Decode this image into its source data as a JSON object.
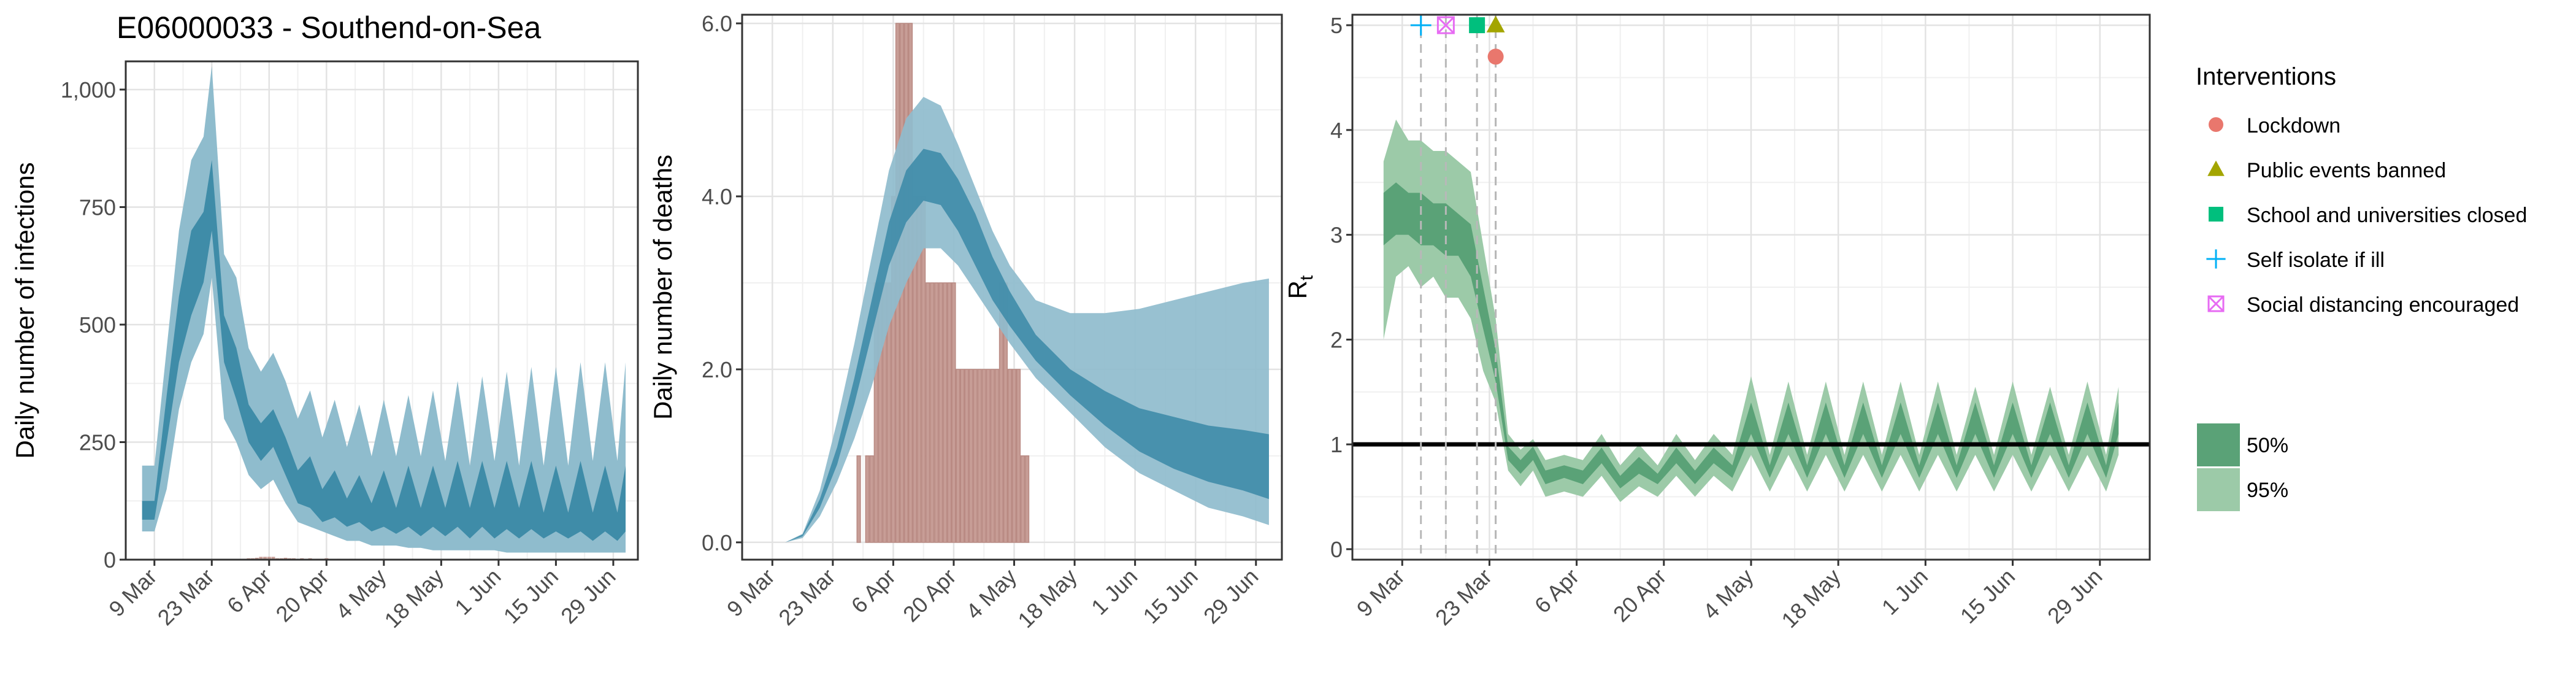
{
  "figure": {
    "title": "E06000033 - Southend-on-Sea"
  },
  "colors": {
    "infections_95": "#8fbccd",
    "infections_50": "#3f8ca8",
    "deaths_bar": "#c79d96",
    "rt_95": "#9ccaa8",
    "rt_50": "#5aa277",
    "rt_line": "#000000",
    "lockdown": "#e9776d",
    "public_events": "#a3a500",
    "school": "#00bf7d",
    "self_isolate": "#00b0f6",
    "social_distancing": "#e76bf3"
  },
  "x_ticks": [
    "9 Mar",
    "23 Mar",
    "6 Apr",
    "20 Apr",
    "4 May",
    "18 May",
    "1 Jun",
    "15 Jun",
    "29 Jun"
  ],
  "legend": {
    "interventions_title": "Interventions",
    "interventions": [
      {
        "label": "Lockdown",
        "icon": "circle-icon",
        "color": "#e9776d"
      },
      {
        "label": "Public events banned",
        "icon": "triangle-icon",
        "color": "#a3a500"
      },
      {
        "label": "School and universities closed",
        "icon": "square-icon",
        "color": "#00bf7d"
      },
      {
        "label": "Self isolate if ill",
        "icon": "plus-icon",
        "color": "#00b0f6"
      },
      {
        "label": "Social distancing encouraged",
        "icon": "boxed-x-icon",
        "color": "#e76bf3"
      }
    ],
    "bands": [
      {
        "label": "50%",
        "color": "#5aa277"
      },
      {
        "label": "95%",
        "color": "#9ccaa8"
      }
    ]
  },
  "chart_data": [
    {
      "type": "area",
      "panel": "infections",
      "ylabel": "Daily number of infections",
      "xlim": [
        "2020-03-02",
        "2020-07-05"
      ],
      "ylim": [
        0,
        1060
      ],
      "yticks": [
        "0",
        "250",
        "500",
        "750",
        "1,000"
      ],
      "ytick_values": [
        0,
        250,
        500,
        750,
        1000
      ],
      "xtick_dates": [
        "2020-03-09",
        "2020-03-23",
        "2020-04-06",
        "2020-04-20",
        "2020-05-04",
        "2020-05-18",
        "2020-06-01",
        "2020-06-15",
        "2020-06-29"
      ],
      "x": [
        "2020-03-06",
        "2020-03-09",
        "2020-03-12",
        "2020-03-15",
        "2020-03-18",
        "2020-03-21",
        "2020-03-23",
        "2020-03-26",
        "2020-03-29",
        "2020-04-01",
        "2020-04-04",
        "2020-04-07",
        "2020-04-10",
        "2020-04-13",
        "2020-04-16",
        "2020-04-19",
        "2020-04-22",
        "2020-04-25",
        "2020-04-28",
        "2020-05-01",
        "2020-05-04",
        "2020-05-07",
        "2020-05-10",
        "2020-05-13",
        "2020-05-16",
        "2020-05-19",
        "2020-05-22",
        "2020-05-25",
        "2020-05-28",
        "2020-05-31",
        "2020-06-03",
        "2020-06-06",
        "2020-06-09",
        "2020-06-12",
        "2020-06-15",
        "2020-06-18",
        "2020-06-21",
        "2020-06-24",
        "2020-06-27",
        "2020-06-30",
        "2020-07-02"
      ],
      "series": [
        {
          "name": "95%",
          "lower": [
            60,
            60,
            150,
            320,
            420,
            480,
            600,
            300,
            250,
            180,
            150,
            170,
            120,
            80,
            70,
            60,
            50,
            40,
            40,
            30,
            30,
            30,
            25,
            25,
            20,
            20,
            20,
            20,
            20,
            20,
            15,
            15,
            15,
            15,
            15,
            15,
            15,
            15,
            15,
            15,
            15
          ],
          "upper": [
            200,
            200,
            450,
            700,
            850,
            900,
            1050,
            650,
            600,
            450,
            400,
            440,
            380,
            300,
            360,
            260,
            340,
            240,
            330,
            220,
            340,
            220,
            350,
            220,
            360,
            210,
            380,
            200,
            390,
            210,
            400,
            200,
            410,
            200,
            410,
            200,
            420,
            210,
            420,
            210,
            420
          ]
        },
        {
          "name": "50%",
          "lower": [
            85,
            85,
            250,
            420,
            520,
            590,
            700,
            420,
            340,
            250,
            210,
            240,
            180,
            120,
            110,
            80,
            90,
            70,
            80,
            60,
            70,
            55,
            70,
            50,
            70,
            50,
            70,
            45,
            70,
            45,
            65,
            45,
            65,
            45,
            60,
            45,
            60,
            40,
            60,
            40,
            60
          ],
          "upper": [
            125,
            125,
            350,
            560,
            700,
            740,
            850,
            520,
            450,
            330,
            290,
            320,
            260,
            190,
            220,
            150,
            190,
            130,
            180,
            120,
            190,
            110,
            200,
            110,
            200,
            110,
            210,
            110,
            210,
            110,
            210,
            110,
            210,
            100,
            200,
            100,
            210,
            100,
            200,
            100,
            200
          ]
        }
      ],
      "observed_deaths": {
        "x": [
          "2020-03-29",
          "2020-03-30",
          "2020-03-31",
          "2020-04-01",
          "2020-04-02",
          "2020-04-03",
          "2020-04-04",
          "2020-04-05",
          "2020-04-06",
          "2020-04-07",
          "2020-04-08",
          "2020-04-09",
          "2020-04-10",
          "2020-04-11",
          "2020-04-12",
          "2020-04-14",
          "2020-04-16",
          "2020-04-18",
          "2020-04-20",
          "2020-04-23",
          "2020-04-26",
          "2020-04-29"
        ],
        "values": [
          1,
          1,
          2,
          3,
          3,
          4,
          6,
          6,
          6,
          6,
          3,
          3,
          4,
          3,
          3,
          3,
          3,
          2,
          3,
          2,
          2,
          1
        ]
      }
    },
    {
      "type": "bar",
      "panel": "deaths",
      "ylabel": "Daily number of deaths",
      "xlim": [
        "2020-03-02",
        "2020-07-05"
      ],
      "ylim": [
        -0.2,
        6.1
      ],
      "yticks": [
        "0.0",
        "2.0",
        "4.0",
        "6.0"
      ],
      "ytick_values": [
        0,
        2,
        4,
        6
      ],
      "xtick_dates": [
        "2020-03-09",
        "2020-03-23",
        "2020-04-06",
        "2020-04-20",
        "2020-05-04",
        "2020-05-18",
        "2020-06-01",
        "2020-06-15",
        "2020-06-29"
      ],
      "bars": {
        "x": [
          "2020-03-29",
          "2020-03-31",
          "2020-04-01",
          "2020-04-02",
          "2020-04-03",
          "2020-04-04",
          "2020-04-05",
          "2020-04-06",
          "2020-04-07",
          "2020-04-08",
          "2020-04-09",
          "2020-04-10",
          "2020-04-11",
          "2020-04-12",
          "2020-04-13",
          "2020-04-14",
          "2020-04-15",
          "2020-04-16",
          "2020-04-17",
          "2020-04-18",
          "2020-04-19",
          "2020-04-20",
          "2020-04-21",
          "2020-04-22",
          "2020-04-23",
          "2020-04-24",
          "2020-04-25",
          "2020-04-26",
          "2020-04-27",
          "2020-04-28",
          "2020-04-29",
          "2020-04-30",
          "2020-05-01",
          "2020-05-02",
          "2020-05-03",
          "2020-05-04",
          "2020-05-05",
          "2020-05-06",
          "2020-05-07"
        ],
        "values": [
          1,
          1,
          1,
          3,
          3,
          3,
          3,
          4,
          6,
          6,
          6,
          6,
          4,
          4,
          4,
          3,
          3,
          3,
          3,
          3,
          3,
          3,
          2,
          2,
          2,
          2,
          2,
          2,
          2,
          2,
          2,
          2,
          3,
          3,
          2,
          2,
          2,
          1,
          1
        ]
      },
      "x": [
        "2020-03-12",
        "2020-03-16",
        "2020-03-20",
        "2020-03-24",
        "2020-03-28",
        "2020-04-01",
        "2020-04-05",
        "2020-04-09",
        "2020-04-13",
        "2020-04-17",
        "2020-04-21",
        "2020-04-25",
        "2020-04-29",
        "2020-05-03",
        "2020-05-09",
        "2020-05-17",
        "2020-05-25",
        "2020-06-02",
        "2020-06-10",
        "2020-06-18",
        "2020-06-26",
        "2020-07-02"
      ],
      "series": [
        {
          "name": "95%",
          "lower": [
            0,
            0.05,
            0.3,
            0.7,
            1.2,
            1.8,
            2.5,
            3.0,
            3.4,
            3.4,
            3.2,
            2.9,
            2.6,
            2.3,
            1.9,
            1.5,
            1.1,
            0.8,
            0.6,
            0.4,
            0.3,
            0.2
          ],
          "upper": [
            0,
            0.1,
            0.6,
            1.4,
            2.3,
            3.3,
            4.3,
            4.9,
            5.15,
            5.05,
            4.6,
            4.1,
            3.6,
            3.2,
            2.8,
            2.65,
            2.65,
            2.7,
            2.8,
            2.9,
            3.0,
            3.05
          ]
        },
        {
          "name": "50%",
          "lower": [
            0,
            0.07,
            0.4,
            0.9,
            1.6,
            2.4,
            3.2,
            3.7,
            3.95,
            3.9,
            3.6,
            3.2,
            2.8,
            2.5,
            2.1,
            1.7,
            1.35,
            1.05,
            0.85,
            0.7,
            0.6,
            0.5
          ],
          "upper": [
            0,
            0.09,
            0.5,
            1.1,
            1.9,
            2.8,
            3.7,
            4.3,
            4.55,
            4.5,
            4.2,
            3.8,
            3.3,
            2.9,
            2.4,
            2.0,
            1.75,
            1.55,
            1.45,
            1.35,
            1.3,
            1.25
          ]
        }
      ]
    },
    {
      "type": "line",
      "panel": "rt",
      "ylabel": "R",
      "ylabel_sub": "t",
      "xlim": [
        "2020-03-01",
        "2020-07-07"
      ],
      "ylim": [
        -0.1,
        5.1
      ],
      "yticks": [
        "0",
        "1",
        "2",
        "3",
        "4",
        "5"
      ],
      "ytick_values": [
        0,
        1,
        2,
        3,
        4,
        5
      ],
      "xtick_dates": [
        "2020-03-09",
        "2020-03-23",
        "2020-04-06",
        "2020-04-20",
        "2020-05-04",
        "2020-05-18",
        "2020-06-01",
        "2020-06-15",
        "2020-06-29"
      ],
      "reference_line": 1,
      "intervention_dates": [
        {
          "label": "Self isolate if ill",
          "date": "2020-03-12",
          "y": 5.0
        },
        {
          "label": "Social distancing encouraged",
          "date": "2020-03-16",
          "y": 5.0
        },
        {
          "label": "School and universities closed",
          "date": "2020-03-21",
          "y": 5.0
        },
        {
          "label": "Public events banned",
          "date": "2020-03-24",
          "y": 5.0
        },
        {
          "label": "Lockdown",
          "date": "2020-03-24",
          "y": 4.7
        }
      ],
      "x": [
        "2020-03-06",
        "2020-03-08",
        "2020-03-10",
        "2020-03-12",
        "2020-03-14",
        "2020-03-16",
        "2020-03-18",
        "2020-03-20",
        "2020-03-22",
        "2020-03-24",
        "2020-03-26",
        "2020-03-28",
        "2020-03-30",
        "2020-04-01",
        "2020-04-04",
        "2020-04-07",
        "2020-04-10",
        "2020-04-13",
        "2020-04-16",
        "2020-04-19",
        "2020-04-22",
        "2020-04-25",
        "2020-04-28",
        "2020-05-01",
        "2020-05-04",
        "2020-05-07",
        "2020-05-10",
        "2020-05-13",
        "2020-05-16",
        "2020-05-19",
        "2020-05-22",
        "2020-05-25",
        "2020-05-28",
        "2020-05-31",
        "2020-06-03",
        "2020-06-06",
        "2020-06-09",
        "2020-06-12",
        "2020-06-15",
        "2020-06-18",
        "2020-06-21",
        "2020-06-24",
        "2020-06-27",
        "2020-06-30",
        "2020-07-02"
      ],
      "series": [
        {
          "name": "95%",
          "lower": [
            2.0,
            2.6,
            2.7,
            2.5,
            2.6,
            2.4,
            2.4,
            2.2,
            1.7,
            1.4,
            0.75,
            0.6,
            0.75,
            0.5,
            0.55,
            0.5,
            0.7,
            0.45,
            0.6,
            0.5,
            0.7,
            0.5,
            0.7,
            0.55,
            0.9,
            0.55,
            0.9,
            0.55,
            0.9,
            0.55,
            0.9,
            0.55,
            0.9,
            0.55,
            0.9,
            0.55,
            0.9,
            0.55,
            0.9,
            0.55,
            0.9,
            0.55,
            0.9,
            0.55,
            0.9
          ],
          "upper": [
            3.7,
            4.1,
            3.9,
            3.9,
            3.8,
            3.8,
            3.7,
            3.6,
            2.9,
            2.2,
            1.1,
            0.95,
            1.05,
            0.85,
            0.9,
            0.85,
            1.1,
            0.8,
            1.0,
            0.8,
            1.1,
            0.85,
            1.1,
            0.9,
            1.65,
            0.9,
            1.6,
            0.9,
            1.6,
            0.9,
            1.6,
            0.9,
            1.6,
            0.9,
            1.6,
            0.9,
            1.55,
            0.9,
            1.6,
            0.9,
            1.55,
            0.9,
            1.6,
            0.9,
            1.55
          ]
        },
        {
          "name": "50%",
          "lower": [
            2.9,
            3.0,
            3.0,
            2.9,
            2.9,
            2.8,
            2.8,
            2.6,
            2.1,
            1.6,
            0.85,
            0.72,
            0.85,
            0.62,
            0.68,
            0.62,
            0.82,
            0.58,
            0.72,
            0.62,
            0.82,
            0.62,
            0.82,
            0.68,
            1.1,
            0.68,
            1.1,
            0.68,
            1.1,
            0.68,
            1.1,
            0.68,
            1.1,
            0.68,
            1.1,
            0.68,
            1.1,
            0.68,
            1.1,
            0.68,
            1.1,
            0.68,
            1.1,
            0.68,
            1.1
          ],
          "upper": [
            3.4,
            3.5,
            3.4,
            3.4,
            3.3,
            3.3,
            3.2,
            3.1,
            2.5,
            1.9,
            0.98,
            0.85,
            0.98,
            0.75,
            0.8,
            0.75,
            0.97,
            0.7,
            0.88,
            0.72,
            0.97,
            0.75,
            0.97,
            0.8,
            1.4,
            0.8,
            1.4,
            0.8,
            1.4,
            0.8,
            1.4,
            0.8,
            1.4,
            0.8,
            1.4,
            0.8,
            1.4,
            0.8,
            1.4,
            0.8,
            1.4,
            0.8,
            1.4,
            0.8,
            1.4
          ]
        }
      ]
    }
  ]
}
